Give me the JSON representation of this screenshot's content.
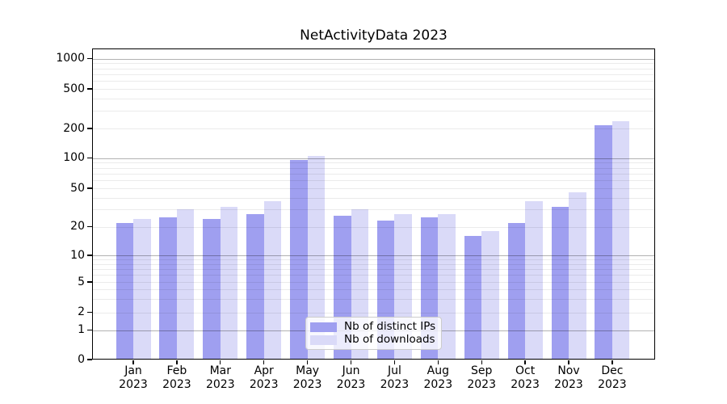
{
  "chart_data": {
    "type": "bar",
    "title": "NetActivityData 2023",
    "x_axis": {
      "categories": [
        "Jan",
        "Feb",
        "Mar",
        "Apr",
        "May",
        "Jun",
        "Jul",
        "Aug",
        "Sep",
        "Oct",
        "Nov",
        "Dec"
      ],
      "year_line": "2023"
    },
    "y_axis": {
      "scale": "symlog",
      "tick_labels": [
        "0",
        "1",
        "2",
        "5",
        "10",
        "20",
        "50",
        "100",
        "200",
        "500",
        "1000"
      ],
      "tick_values": [
        0,
        1,
        2,
        5,
        10,
        20,
        50,
        100,
        200,
        500,
        1000
      ],
      "major_gridline_values": [
        1,
        10,
        100,
        1000
      ],
      "minor_gridline_values": [
        2,
        3,
        4,
        5,
        6,
        7,
        8,
        9,
        20,
        30,
        40,
        50,
        60,
        70,
        80,
        90,
        200,
        300,
        400,
        500,
        600,
        700,
        800,
        900
      ]
    },
    "ylim": [
      0,
      1300
    ],
    "grid": true,
    "series": [
      {
        "name": "Nb of distinct IPs",
        "color": "#9f9ff0",
        "values": [
          22,
          25,
          24,
          27,
          96,
          26,
          23,
          25,
          16,
          22,
          32,
          216
        ]
      },
      {
        "name": "Nb of downloads",
        "color": "#dadaf8",
        "values": [
          24,
          30,
          32,
          37,
          105,
          30,
          27,
          27,
          18,
          37,
          45,
          236
        ]
      }
    ],
    "legend": {
      "position": "lower center",
      "entries": [
        "Nb of distinct IPs",
        "Nb of downloads"
      ]
    },
    "colors": {
      "spine": "#000000",
      "major_grid": "rgba(0,0,0,0.30)",
      "minor_grid": "rgba(0,0,0,0.08)"
    }
  }
}
